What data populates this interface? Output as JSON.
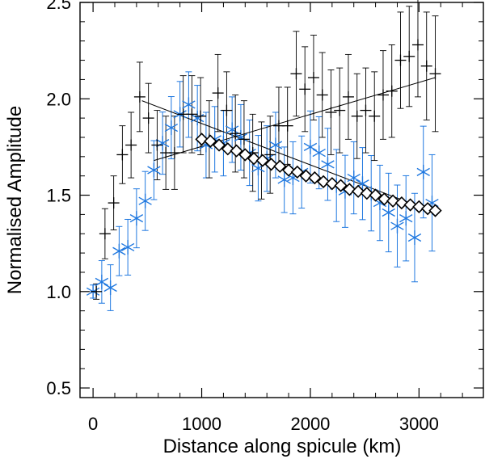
{
  "chart_data": {
    "type": "scatter",
    "title": "",
    "xlabel": "Distance along spicule (km)",
    "ylabel": "Normalised Amplitude",
    "xlim": [
      -120,
      3600
    ],
    "ylim": [
      0.45,
      2.5
    ],
    "xticks": [
      0,
      1000,
      2000,
      3000
    ],
    "xtick_labels": [
      "0",
      "1000",
      "2000",
      "3000"
    ],
    "yticks": [
      0.5,
      1.0,
      1.5,
      2.0,
      2.5
    ],
    "ytick_labels": [
      "0.5",
      "1.0",
      "1.5",
      "2.0",
      "2.5"
    ],
    "grid": false,
    "colors": {
      "black_series": "#000000",
      "blue_series": "#1f78e0",
      "fit_line": "#000000",
      "axes": "#000000"
    },
    "series": [
      {
        "name": "black-plus",
        "marker": "plus",
        "x": [
          0,
          80,
          160,
          240,
          320,
          400,
          480,
          560,
          640,
          720,
          800,
          880,
          960,
          1040,
          1120,
          1200,
          1280,
          1360,
          1440,
          1520,
          1600,
          1680,
          1760,
          1840,
          1920,
          2000,
          2080,
          2160,
          2240,
          2320,
          2400,
          2480,
          2560,
          2640,
          2720,
          2800,
          2880,
          2960,
          3040,
          3120
        ],
        "y": [
          1.0,
          1.3,
          1.46,
          1.71,
          1.76,
          2.01,
          1.9,
          1.76,
          1.72,
          1.72,
          1.92,
          1.92,
          1.91,
          1.79,
          2.03,
          1.94,
          1.82,
          1.79,
          1.72,
          1.68,
          1.71,
          1.86,
          1.86,
          2.13,
          2.05,
          2.11,
          2.02,
          1.93,
          1.94,
          2.01,
          1.91,
          1.94,
          1.91,
          2.02,
          2.04,
          2.2,
          2.22,
          2.28,
          2.17,
          2.13
        ],
        "err": [
          0.04,
          0.13,
          0.14,
          0.15,
          0.17,
          0.18,
          0.18,
          0.18,
          0.19,
          0.19,
          0.2,
          0.2,
          0.2,
          0.2,
          0.2,
          0.2,
          0.2,
          0.2,
          0.2,
          0.2,
          0.2,
          0.2,
          0.2,
          0.22,
          0.22,
          0.22,
          0.22,
          0.22,
          0.22,
          0.22,
          0.22,
          0.22,
          0.23,
          0.23,
          0.24,
          0.25,
          0.26,
          0.27,
          0.28,
          0.3
        ]
      },
      {
        "name": "blue-star",
        "marker": "asterisk",
        "x": [
          0,
          80,
          160,
          240,
          320,
          400,
          480,
          560,
          640,
          720,
          800,
          880,
          960,
          1040,
          1120,
          1200,
          1280,
          1360,
          1440,
          1520,
          1600,
          1680,
          1760,
          1840,
          1920,
          2000,
          2080,
          2160,
          2240,
          2320,
          2400,
          2480,
          2560,
          2640,
          2720,
          2800,
          2880,
          2960,
          3040,
          3120
        ],
        "y": [
          1.0,
          1.05,
          1.02,
          1.21,
          1.23,
          1.38,
          1.47,
          1.63,
          1.77,
          1.85,
          1.92,
          1.97,
          1.9,
          1.76,
          1.79,
          1.77,
          1.84,
          1.8,
          1.72,
          1.64,
          1.69,
          1.76,
          1.58,
          1.59,
          1.62,
          1.75,
          1.72,
          1.66,
          1.55,
          1.52,
          1.59,
          1.56,
          1.51,
          1.46,
          1.41,
          1.34,
          1.38,
          1.28,
          1.62,
          1.46
        ]
      },
      {
        "name": "fit-markers",
        "marker": "diamond",
        "x": [
          1000,
          1080,
          1160,
          1240,
          1320,
          1400,
          1480,
          1560,
          1640,
          1720,
          1800,
          1880,
          1960,
          2040,
          2120,
          2200,
          2280,
          2360,
          2440,
          2520,
          2600,
          2680,
          2760,
          2840,
          2920,
          3000,
          3080,
          3150
        ],
        "y": [
          1.79,
          1.78,
          1.76,
          1.74,
          1.73,
          1.71,
          1.69,
          1.68,
          1.66,
          1.65,
          1.63,
          1.62,
          1.6,
          1.59,
          1.57,
          1.56,
          1.55,
          1.53,
          1.52,
          1.51,
          1.5,
          1.48,
          1.47,
          1.46,
          1.45,
          1.44,
          1.43,
          1.42
        ]
      }
    ],
    "fit_lines": [
      {
        "name": "decreasing-fit",
        "x": [
          450,
          3150
        ],
        "y": [
          1.99,
          1.41
        ]
      },
      {
        "name": "increasing-fit",
        "x": [
          560,
          3150
        ],
        "y": [
          1.68,
          2.11
        ]
      }
    ]
  }
}
